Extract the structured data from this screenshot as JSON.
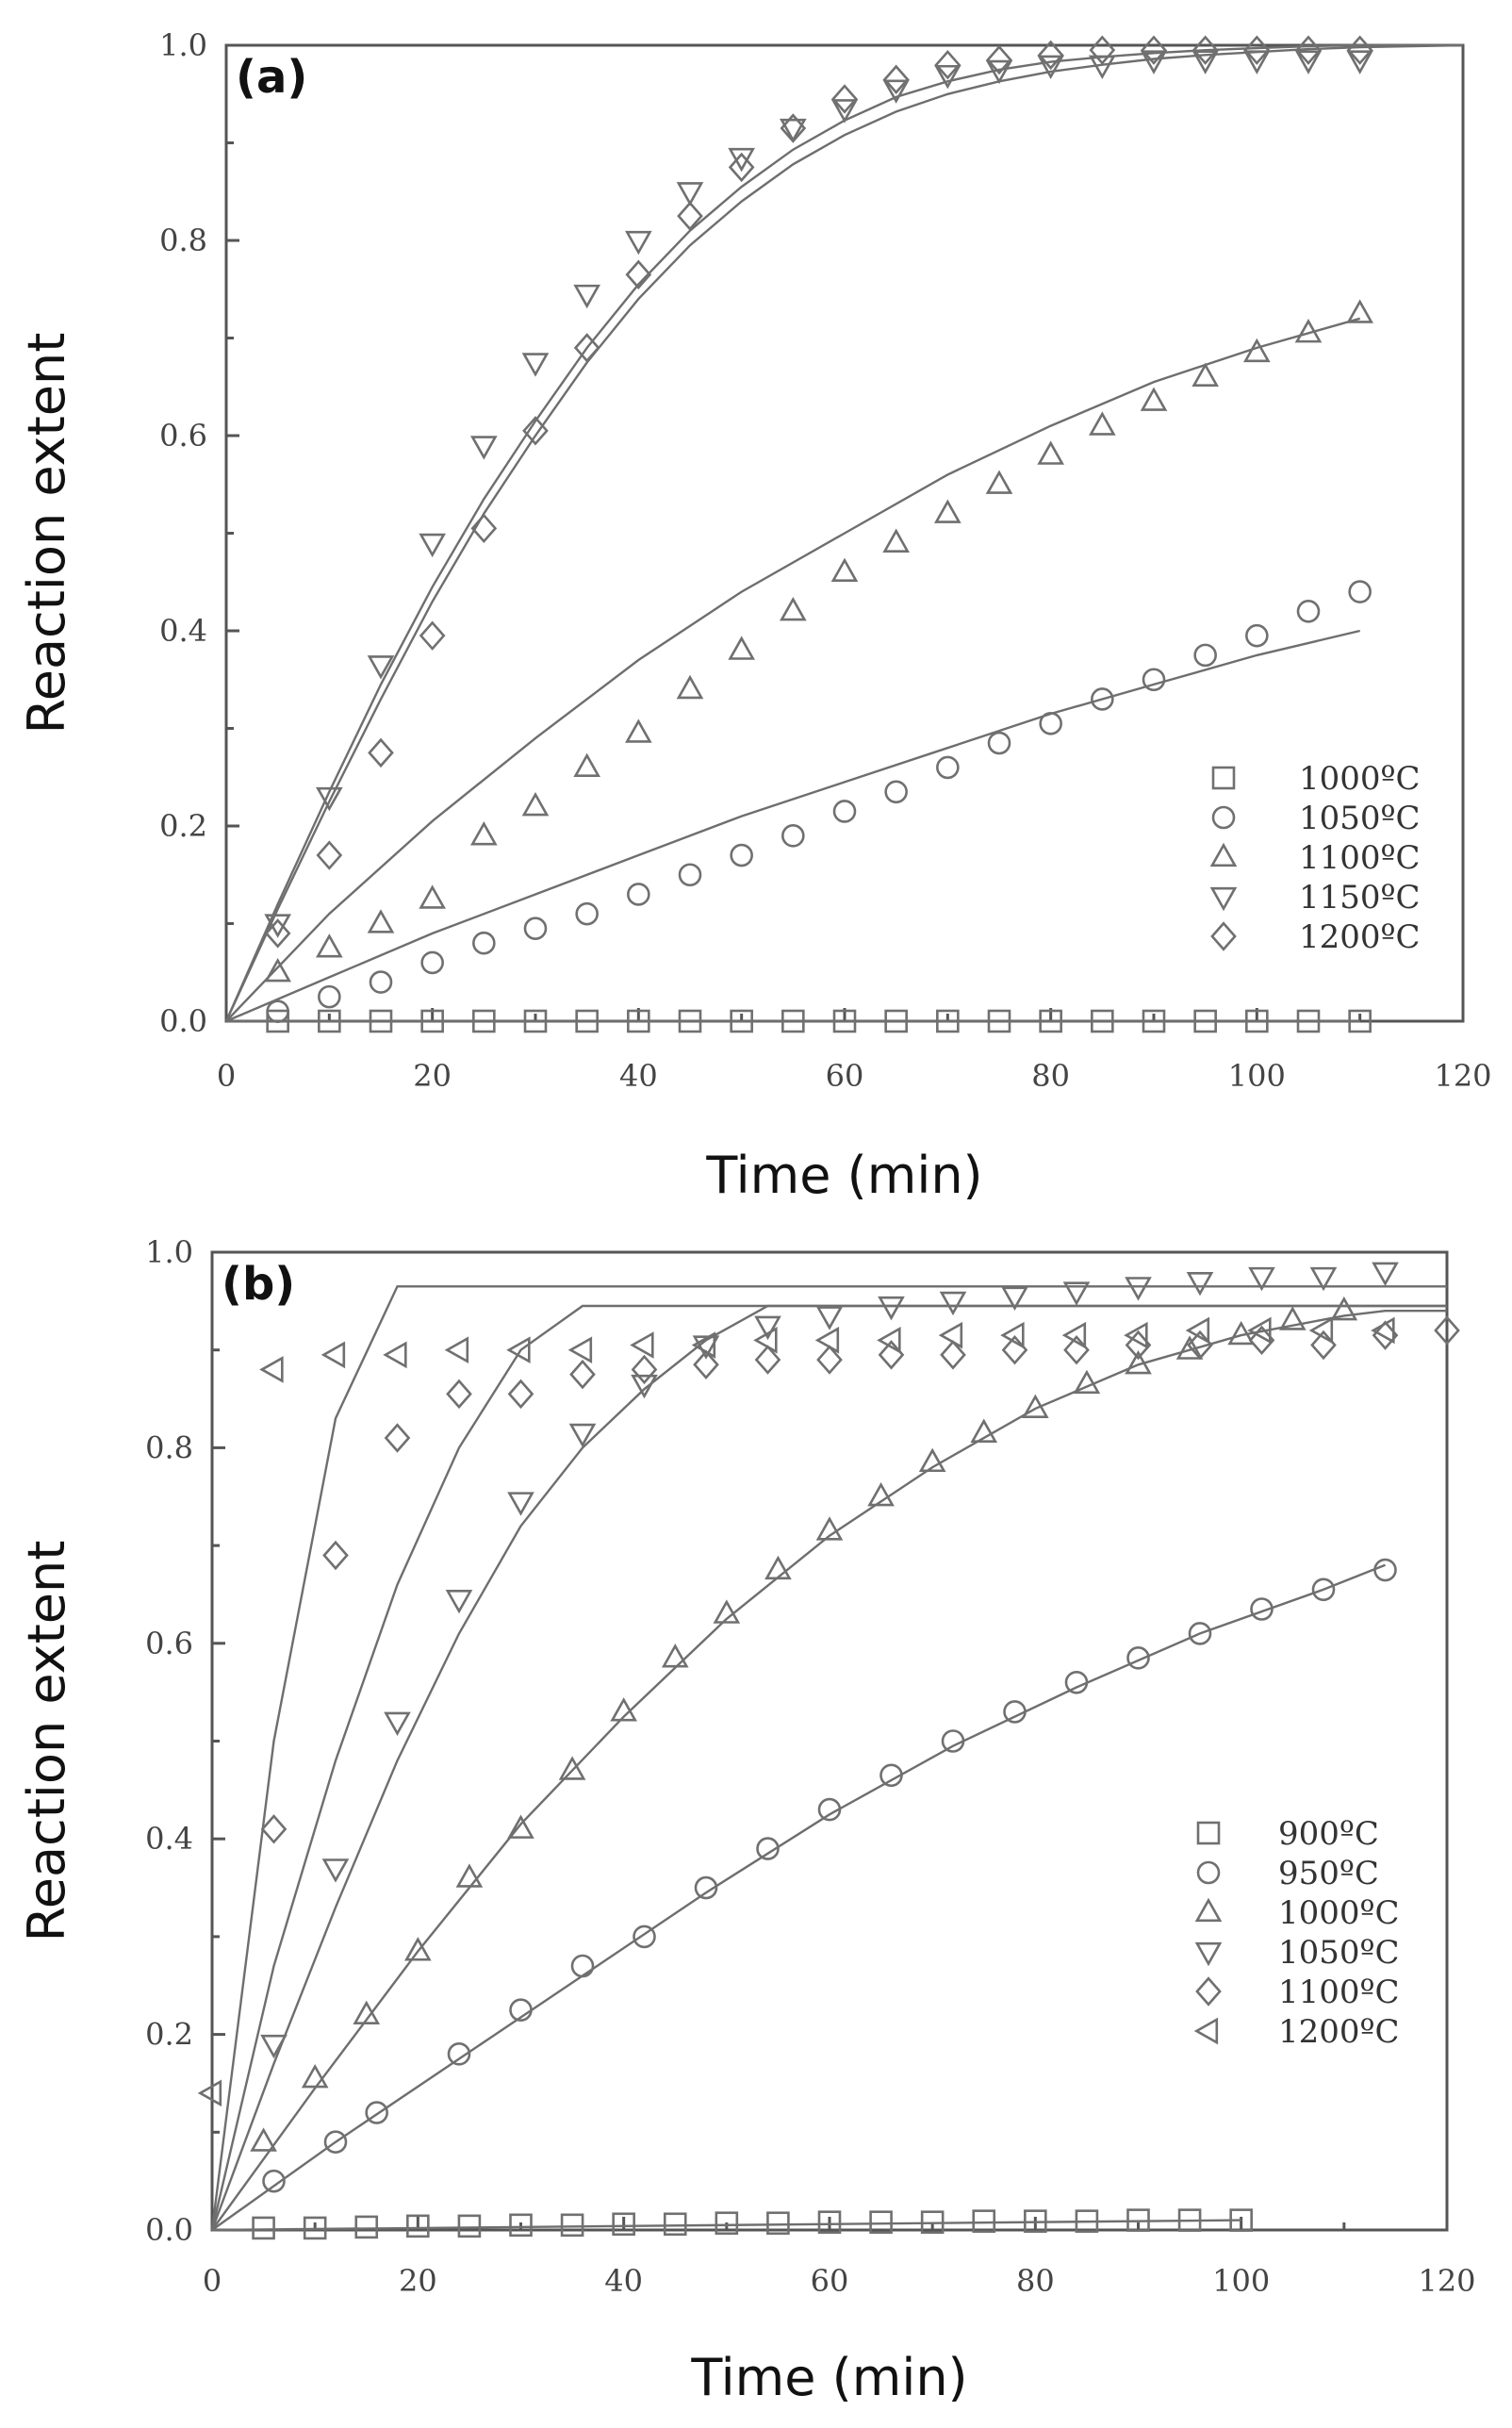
{
  "chart_data": [
    {
      "type": "scatter",
      "panel_label": "(a)",
      "xlabel": "Time (min)",
      "ylabel": "Reaction extent",
      "xlim": [
        0,
        120
      ],
      "ylim": [
        0,
        1.0
      ],
      "xticks": [
        "0",
        "20",
        "40",
        "60",
        "80",
        "100",
        "120"
      ],
      "yticks": [
        "0.0",
        "0.2",
        "0.4",
        "0.6",
        "0.8",
        "1.0"
      ],
      "legend_position": "bottom-right",
      "series": [
        {
          "name": "1000ºC",
          "marker": "square",
          "x": [
            5,
            10,
            15,
            20,
            25,
            30,
            35,
            40,
            45,
            50,
            55,
            60,
            65,
            70,
            75,
            80,
            85,
            90,
            95,
            100,
            105,
            110
          ],
          "y": [
            0,
            0,
            0,
            0,
            0,
            0,
            0,
            0,
            0,
            0,
            0,
            0,
            0,
            0,
            0,
            0,
            0,
            0,
            0,
            0,
            0,
            0
          ]
        },
        {
          "name": "1050ºC",
          "marker": "circle",
          "x": [
            5,
            10,
            15,
            20,
            25,
            30,
            35,
            40,
            45,
            50,
            55,
            60,
            65,
            70,
            75,
            80,
            85,
            90,
            95,
            100,
            105,
            110
          ],
          "y": [
            0.01,
            0.025,
            0.04,
            0.06,
            0.08,
            0.095,
            0.11,
            0.13,
            0.15,
            0.17,
            0.19,
            0.215,
            0.235,
            0.26,
            0.285,
            0.305,
            0.33,
            0.35,
            0.375,
            0.395,
            0.42,
            0.44
          ]
        },
        {
          "name": "1100ºC",
          "marker": "triangle-up",
          "x": [
            5,
            10,
            15,
            20,
            25,
            30,
            35,
            40,
            45,
            50,
            55,
            60,
            65,
            70,
            75,
            80,
            85,
            90,
            95,
            100,
            105,
            110
          ],
          "y": [
            0.05,
            0.075,
            0.1,
            0.125,
            0.19,
            0.22,
            0.26,
            0.295,
            0.34,
            0.38,
            0.42,
            0.46,
            0.49,
            0.52,
            0.55,
            0.58,
            0.61,
            0.635,
            0.66,
            0.685,
            0.705,
            0.725
          ]
        },
        {
          "name": "1150ºC",
          "marker": "triangle-down",
          "x": [
            5,
            10,
            15,
            20,
            25,
            30,
            35,
            40,
            45,
            50,
            55,
            60,
            65,
            70,
            75,
            80,
            85,
            90,
            95,
            100,
            105,
            110
          ],
          "y": [
            0.1,
            0.23,
            0.365,
            0.49,
            0.59,
            0.675,
            0.745,
            0.8,
            0.85,
            0.885,
            0.915,
            0.935,
            0.955,
            0.97,
            0.975,
            0.98,
            0.98,
            0.985,
            0.985,
            0.985,
            0.985,
            0.985
          ]
        },
        {
          "name": "1200ºC",
          "marker": "diamond",
          "x": [
            5,
            10,
            15,
            20,
            25,
            30,
            35,
            40,
            45,
            50,
            55,
            60,
            65,
            70,
            75,
            80,
            85,
            90,
            95,
            100,
            105,
            110
          ],
          "y": [
            0.09,
            0.17,
            0.275,
            0.395,
            0.505,
            0.605,
            0.69,
            0.765,
            0.825,
            0.875,
            0.915,
            0.945,
            0.965,
            0.98,
            0.985,
            0.99,
            0.995,
            0.995,
            0.995,
            0.995,
            0.995,
            0.995
          ]
        }
      ],
      "fit_lines": [
        {
          "name": "fit-1150",
          "x": [
            0,
            5,
            10,
            15,
            20,
            25,
            30,
            35,
            40,
            45,
            50,
            55,
            60,
            65,
            70,
            75,
            80,
            85,
            90,
            95,
            100,
            105,
            110,
            120
          ],
          "y": [
            0,
            0.12,
            0.235,
            0.345,
            0.445,
            0.535,
            0.615,
            0.69,
            0.755,
            0.81,
            0.855,
            0.893,
            0.923,
            0.947,
            0.963,
            0.975,
            0.983,
            0.988,
            0.992,
            0.995,
            0.997,
            0.999,
            1.0,
            1.0
          ]
        },
        {
          "name": "fit-1200",
          "x": [
            0,
            5,
            10,
            15,
            20,
            25,
            30,
            35,
            40,
            45,
            50,
            55,
            60,
            65,
            70,
            75,
            80,
            85,
            90,
            95,
            100,
            105,
            110,
            120
          ],
          "y": [
            0,
            0.115,
            0.225,
            0.33,
            0.43,
            0.52,
            0.6,
            0.675,
            0.74,
            0.795,
            0.84,
            0.878,
            0.908,
            0.932,
            0.95,
            0.963,
            0.973,
            0.98,
            0.986,
            0.99,
            0.993,
            0.996,
            0.998,
            1.0
          ]
        },
        {
          "name": "fit-1100",
          "x": [
            0,
            10,
            20,
            30,
            40,
            50,
            60,
            70,
            80,
            90,
            100,
            110
          ],
          "y": [
            0,
            0.11,
            0.205,
            0.29,
            0.37,
            0.44,
            0.5,
            0.56,
            0.61,
            0.655,
            0.69,
            0.72
          ]
        },
        {
          "name": "fit-1050",
          "x": [
            0,
            10,
            20,
            30,
            40,
            50,
            60,
            70,
            80,
            90,
            100,
            110
          ],
          "y": [
            0,
            0.045,
            0.09,
            0.13,
            0.17,
            0.21,
            0.245,
            0.28,
            0.315,
            0.345,
            0.375,
            0.4
          ]
        },
        {
          "name": "fit-1000",
          "x": [
            0,
            110
          ],
          "y": [
            0,
            0
          ]
        }
      ]
    },
    {
      "type": "scatter",
      "panel_label": "(b)",
      "xlabel": "Time (min)",
      "ylabel": "Reaction extent",
      "xlim": [
        0,
        120
      ],
      "ylim": [
        0,
        1.0
      ],
      "xticks": [
        "0",
        "20",
        "40",
        "60",
        "80",
        "100",
        "120"
      ],
      "yticks": [
        "0.0",
        "0.2",
        "0.4",
        "0.6",
        "0.8",
        "1.0"
      ],
      "legend_position": "bottom-right",
      "series": [
        {
          "name": "900ºC",
          "marker": "square",
          "x": [
            5,
            10,
            15,
            20,
            25,
            30,
            35,
            40,
            45,
            50,
            55,
            60,
            65,
            70,
            75,
            80,
            85,
            90,
            95,
            100
          ],
          "y": [
            0.002,
            0.002,
            0.003,
            0.004,
            0.004,
            0.005,
            0.005,
            0.006,
            0.006,
            0.007,
            0.007,
            0.008,
            0.008,
            0.008,
            0.009,
            0.009,
            0.009,
            0.01,
            0.01,
            0.01
          ]
        },
        {
          "name": "950ºC",
          "marker": "circle",
          "x": [
            6,
            12,
            16,
            24,
            30,
            36,
            42,
            48,
            54,
            60,
            66,
            72,
            78,
            84,
            90,
            96,
            102,
            108,
            114
          ],
          "y": [
            0.05,
            0.09,
            0.12,
            0.18,
            0.225,
            0.27,
            0.3,
            0.35,
            0.39,
            0.43,
            0.465,
            0.5,
            0.53,
            0.56,
            0.585,
            0.61,
            0.635,
            0.655,
            0.675
          ]
        },
        {
          "name": "1000ºC",
          "marker": "triangle-up",
          "x": [
            5,
            10,
            15,
            20,
            25,
            30,
            35,
            40,
            45,
            50,
            55,
            60,
            65,
            70,
            75,
            80,
            85,
            90,
            95,
            100,
            105,
            110
          ],
          "y": [
            0.09,
            0.155,
            0.22,
            0.285,
            0.36,
            0.41,
            0.47,
            0.53,
            0.585,
            0.63,
            0.675,
            0.715,
            0.75,
            0.785,
            0.815,
            0.84,
            0.865,
            0.885,
            0.9,
            0.915,
            0.93,
            0.94
          ]
        },
        {
          "name": "1050ºC",
          "marker": "triangle-down",
          "x": [
            6,
            12,
            18,
            24,
            30,
            36,
            42,
            48,
            54,
            60,
            66,
            72,
            78,
            84,
            90,
            96,
            102,
            108,
            114
          ],
          "y": [
            0.19,
            0.37,
            0.52,
            0.645,
            0.745,
            0.815,
            0.865,
            0.905,
            0.925,
            0.935,
            0.945,
            0.95,
            0.955,
            0.96,
            0.965,
            0.97,
            0.975,
            0.975,
            0.98
          ]
        },
        {
          "name": "1100ºC",
          "marker": "diamond",
          "x": [
            6,
            12,
            18,
            24,
            30,
            36,
            42,
            48,
            54,
            60,
            66,
            72,
            78,
            84,
            90,
            96,
            102,
            108,
            114,
            120
          ],
          "y": [
            0.41,
            0.69,
            0.81,
            0.855,
            0.855,
            0.875,
            0.88,
            0.885,
            0.89,
            0.89,
            0.895,
            0.895,
            0.9,
            0.9,
            0.905,
            0.905,
            0.91,
            0.905,
            0.915,
            0.92
          ]
        },
        {
          "name": "1200ºC",
          "marker": "triangle-left",
          "x": [
            0,
            6,
            12,
            18,
            24,
            30,
            36,
            42,
            48,
            54,
            60,
            66,
            72,
            78,
            84,
            90,
            96,
            102,
            108,
            114
          ],
          "y": [
            0.14,
            0.88,
            0.895,
            0.895,
            0.9,
            0.9,
            0.9,
            0.905,
            0.905,
            0.91,
            0.91,
            0.91,
            0.915,
            0.915,
            0.915,
            0.915,
            0.92,
            0.92,
            0.92,
            0.92
          ]
        }
      ],
      "fit_lines": [
        {
          "name": "fit-1200",
          "x": [
            0,
            6,
            12,
            18,
            120
          ],
          "y": [
            0,
            0.5,
            0.83,
            0.965,
            0.965
          ]
        },
        {
          "name": "fit-1100",
          "x": [
            0,
            6,
            12,
            18,
            24,
            30,
            36,
            120
          ],
          "y": [
            0,
            0.27,
            0.48,
            0.66,
            0.8,
            0.9,
            0.945,
            0.945
          ]
        },
        {
          "name": "fit-1050",
          "x": [
            0,
            6,
            12,
            18,
            24,
            30,
            36,
            42,
            48,
            54,
            120
          ],
          "y": [
            0,
            0.17,
            0.33,
            0.48,
            0.61,
            0.72,
            0.8,
            0.86,
            0.91,
            0.945,
            0.945
          ]
        },
        {
          "name": "fit-1000",
          "x": [
            0,
            10,
            20,
            30,
            40,
            50,
            60,
            70,
            80,
            90,
            100,
            110,
            114,
            120
          ],
          "y": [
            0,
            0.145,
            0.285,
            0.415,
            0.525,
            0.625,
            0.71,
            0.78,
            0.84,
            0.885,
            0.915,
            0.935,
            0.94,
            0.94
          ]
        },
        {
          "name": "fit-950",
          "x": [
            0,
            12,
            24,
            36,
            48,
            60,
            72,
            84,
            96,
            108,
            114
          ],
          "y": [
            0,
            0.09,
            0.175,
            0.26,
            0.345,
            0.425,
            0.495,
            0.555,
            0.61,
            0.655,
            0.68
          ]
        },
        {
          "name": "fit-900",
          "x": [
            0,
            100
          ],
          "y": [
            0,
            0.01
          ]
        }
      ]
    }
  ]
}
